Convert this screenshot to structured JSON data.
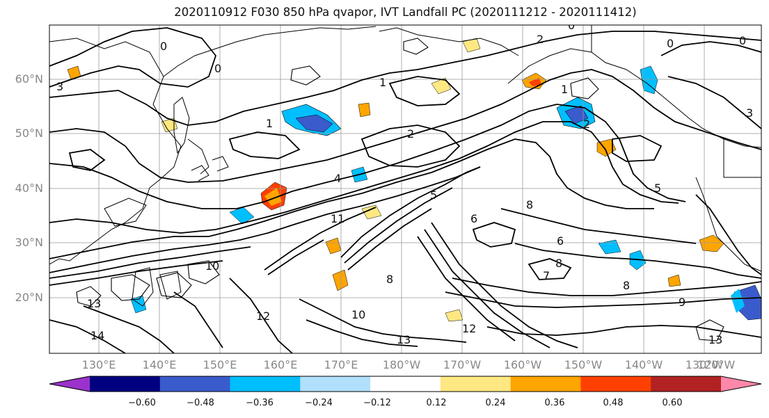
{
  "title": "2020110912 F030 850 hPa qvapor, IVT Landfall PC (2020111212 - 2020111412)",
  "lat_labels": [
    "60°N",
    "50°N",
    "40°N",
    "30°N",
    "20°N"
  ],
  "lon_labels": [
    "130°E",
    "140°E",
    "150°E",
    "160°E",
    "170°E",
    "180°W",
    "170°W",
    "160°W",
    "150°W",
    "140°W",
    "130°W",
    "120°W"
  ],
  "contour_labels": [
    "0",
    "1",
    "2",
    "3",
    "4",
    "5",
    "6",
    "7",
    "8",
    "9",
    "10",
    "11",
    "12",
    "13",
    "14"
  ],
  "colorbar": {
    "ticks": [
      "−0.60",
      "−0.48",
      "−0.36",
      "−0.24",
      "−0.12",
      "0.12",
      "0.24",
      "0.36",
      "0.48",
      "0.60"
    ],
    "colors": [
      "#9b32cd",
      "#000080",
      "#3a5bcc",
      "#00bfff",
      "#b0e0fb",
      "#ffffff",
      "#ffe882",
      "#ffa500",
      "#ff4000",
      "#b22222",
      "#ff88aa"
    ]
  }
}
